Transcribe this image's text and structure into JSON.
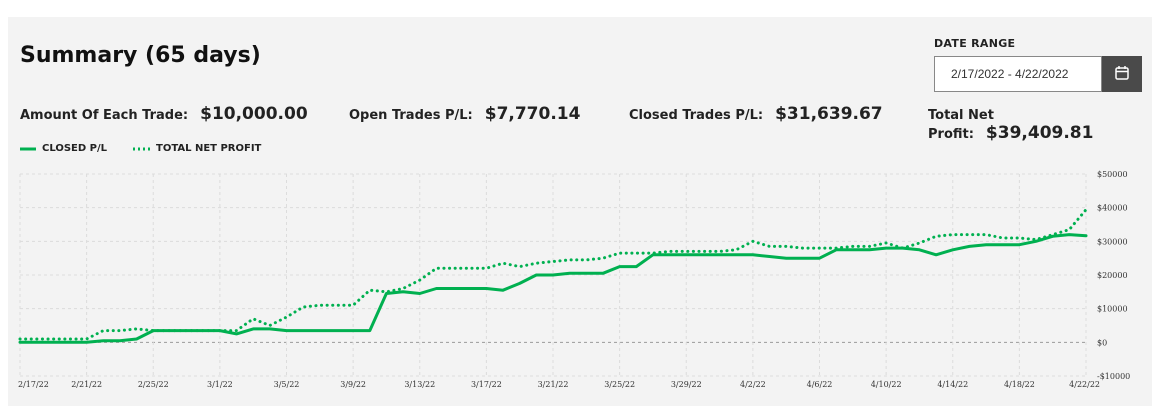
{
  "header": {
    "title": "Summary (65 days)",
    "date_range_label": "DATE RANGE",
    "date_range_value": "2/17/2022 - 4/22/2022"
  },
  "stats": {
    "amount_label": "Amount Of Each Trade:",
    "amount_value": "$10,000.00",
    "open_label": "Open Trades P/L:",
    "open_value": "$7,770.14",
    "closed_label": "Closed Trades P/L:",
    "closed_value": "$31,639.67",
    "net_label": "Total Net Profit:",
    "net_value": "$39,409.81"
  },
  "colors": {
    "accent": "#00b050",
    "panel": "#f3f3f3",
    "button": "#4a4a4a"
  },
  "icons": {
    "calendar": "calendar-icon"
  },
  "chart_data": {
    "type": "line",
    "x": [
      "2/17/22",
      "2/18/22",
      "2/19/22",
      "2/20/22",
      "2/21/22",
      "2/22/22",
      "2/23/22",
      "2/24/22",
      "2/25/22",
      "2/26/22",
      "2/27/22",
      "2/28/22",
      "3/1/22",
      "3/2/22",
      "3/3/22",
      "3/4/22",
      "3/5/22",
      "3/6/22",
      "3/7/22",
      "3/8/22",
      "3/9/22",
      "3/10/22",
      "3/11/22",
      "3/12/22",
      "3/13/22",
      "3/14/22",
      "3/15/22",
      "3/16/22",
      "3/17/22",
      "3/18/22",
      "3/19/22",
      "3/20/22",
      "3/21/22",
      "3/22/22",
      "3/23/22",
      "3/24/22",
      "3/25/22",
      "3/26/22",
      "3/27/22",
      "3/28/22",
      "3/29/22",
      "3/30/22",
      "3/31/22",
      "4/1/22",
      "4/2/22",
      "4/3/22",
      "4/4/22",
      "4/5/22",
      "4/6/22",
      "4/7/22",
      "4/8/22",
      "4/9/22",
      "4/10/22",
      "4/11/22",
      "4/12/22",
      "4/13/22",
      "4/14/22",
      "4/15/22",
      "4/16/22",
      "4/17/22",
      "4/18/22",
      "4/19/22",
      "4/20/22",
      "4/21/22",
      "4/22/22"
    ],
    "x_tick_labels": [
      "2/17/22",
      "2/21/22",
      "2/25/22",
      "3/1/22",
      "3/5/22",
      "3/9/22",
      "3/13/22",
      "3/17/22",
      "3/21/22",
      "3/25/22",
      "3/29/22",
      "4/2/22",
      "4/6/22",
      "4/10/22",
      "4/14/22",
      "4/18/22",
      "4/22/22"
    ],
    "y_tick_values": [
      -10000,
      0,
      10000,
      20000,
      30000,
      40000,
      50000
    ],
    "y_tick_labels": [
      "-$10000",
      "$0",
      "$10000",
      "$20000",
      "$30000",
      "$40000",
      "$50000"
    ],
    "ylim": [
      -10000,
      50000
    ],
    "grid": true,
    "legend_position": "top-left",
    "series": [
      {
        "name": "CLOSED P/L",
        "style": "solid",
        "color": "#00b050",
        "values": [
          0,
          0,
          0,
          0,
          0,
          500,
          500,
          1000,
          3500,
          3500,
          3500,
          3500,
          3500,
          2500,
          4000,
          4000,
          3500,
          3500,
          3500,
          3500,
          3500,
          3500,
          14500,
          15000,
          14500,
          16000,
          16000,
          16000,
          16000,
          15500,
          17500,
          20000,
          20000,
          20500,
          20500,
          20500,
          22500,
          22500,
          26000,
          26000,
          26000,
          26000,
          26000,
          26000,
          26000,
          25500,
          25000,
          25000,
          25000,
          27500,
          27500,
          27500,
          28000,
          28000,
          27500,
          26000,
          27500,
          28500,
          29000,
          29000,
          29000,
          30000,
          31500,
          32000,
          31639
        ]
      },
      {
        "name": "TOTAL NET PROFIT",
        "style": "dotted",
        "color": "#00b050",
        "values": [
          1000,
          1000,
          1000,
          1000,
          1000,
          3500,
          3500,
          4000,
          3500,
          3500,
          3500,
          3500,
          3500,
          3500,
          7000,
          5000,
          7500,
          10500,
          11000,
          11000,
          11000,
          15500,
          15000,
          16000,
          18500,
          22000,
          22000,
          22000,
          22000,
          23500,
          22500,
          23500,
          24000,
          24500,
          24500,
          25000,
          26500,
          26500,
          26500,
          27000,
          27000,
          27000,
          27000,
          27500,
          30000,
          28500,
          28500,
          28000,
          28000,
          28000,
          28500,
          28500,
          29500,
          28000,
          29500,
          31500,
          32000,
          32000,
          32000,
          31000,
          31000,
          30500,
          32000,
          33500,
          39409
        ]
      }
    ]
  }
}
